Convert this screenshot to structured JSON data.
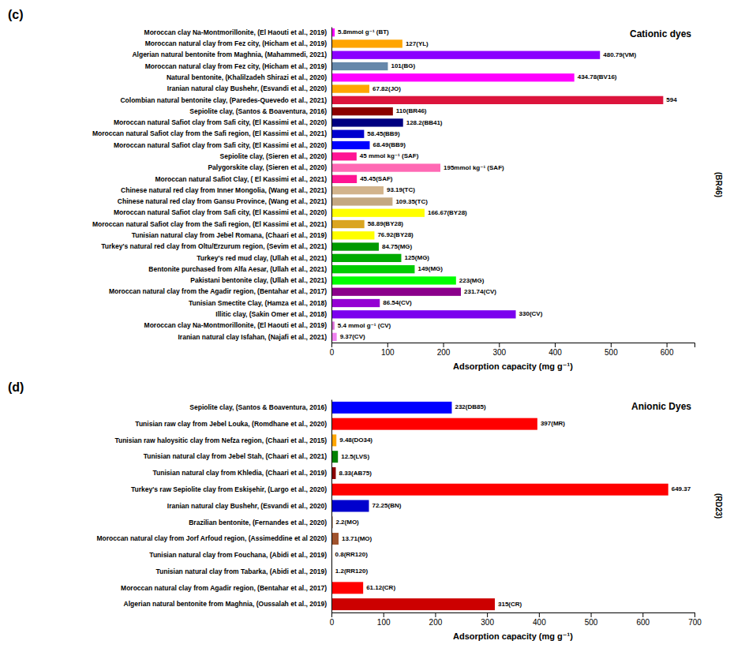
{
  "chart_data": [
    {
      "type": "bar",
      "orientation": "horizontal",
      "title": "(c)",
      "xlabel": "Adsorption capacity (mg g⁻¹)",
      "annotations": [
        "Cationic dyes",
        "(BR46)"
      ],
      "categories": [
        "Moroccan clay Na-Montmorillonite, (El Haouti et al., 2019)",
        "Moroccan natural clay from Fez city, (Hicham et al., 2019)",
        "Algerian natural bentonite from Maghnia, (Mahammedi, 2021)",
        "Moroccan natural clay from Fez city, (Hicham et al., 2019)",
        "Natural bentonite, (Khalilzadeh Shirazi et al., 2020)",
        "Iranian natural clay Bushehr, (Esvandi et al., 2020)",
        "Colombian natural bentonite clay, (Paredes-Quevedo et al., 2021)",
        "Sepiolite clay, (Santos & Boaventura, 2016)",
        "Moroccan natural Safiot clay from Safi city, (El Kassimi et al., 2020)",
        "Moroccan natural Safiot clay from the Safi region, (El Kassimi et al., 2021)",
        "Moroccan natural Safiot clay from Safi city, (El Kassimi et al., 2020)",
        "Sepiolite clay, (Sieren et al., 2020)",
        "Palygorskite clay, (Sieren et al., 2020)",
        "Moroccan natural Safiot Clay, ( El Kassimi et al., 2021)",
        "Chinese natural red clay from Inner Mongolia, (Wang et al., 2021)",
        "Chinese natural red clay from Gansu Province, (Wang et al., 2021)",
        "Moroccan natural Safiot clay from Safi city, (El Kassimi et al., 2020)",
        "Moroccan natural Safiot clay from the Safi region, (El Kassimi et al., 2021)",
        "Tunisian natural clay from Jebel Romana, (Chaari et al., 2019)",
        "Turkey's natural red clay from Oltu/Erzurum region, (Sevim et al., 2021)",
        "Turkey's red mud clay, (Ullah et al., 2021)",
        "Bentonite purchased from Alfa Aesar, (Ullah et al., 2021)",
        "Pakistani bentonite clay, (Ullah et al., 2021)",
        "Moroccan natural clay from the Agadir region, (Bentahar et al., 2017)",
        "Tunisian Smectite Clay, (Hamza et al., 2018)",
        "Illitic clay, (Sakin Omer et al., 2018)",
        "Moroccan clay Na-Montmorillonite, (El Haouti et al., 2019)",
        "Iranian natural clay Isfahan, (Najafi et al., 2021)"
      ],
      "values": [
        5.8,
        127,
        480.79,
        101,
        434.78,
        67.82,
        594,
        110,
        128.2,
        58.45,
        68.49,
        45,
        195,
        45.45,
        93.19,
        109.35,
        166.67,
        58.89,
        76.92,
        84.75,
        125,
        149,
        223,
        231.74,
        86.54,
        330,
        5.4,
        9.37
      ],
      "value_labels": [
        "5.8mmol g⁻¹ (BT)",
        "127(YL)",
        "480.79(VM)",
        "101(BG)",
        "434.78(BV16)",
        "67.82(JO)",
        "594",
        "110(BR46)",
        "128.2(BB41)",
        "58.45(BB9)",
        "68.49(BB9)",
        "45 mmol kg⁻¹ (SAF)",
        "195mmol kg⁻¹ (SAF)",
        "45.45(SAF)",
        "93.19(TC)",
        "109.35(TC)",
        "166.67(BY28)",
        "58.89(BY28)",
        "76.92(BY28)",
        "84.75(MG)",
        "125(MG)",
        "149(MG)",
        "223(MG)",
        "231.74(CV)",
        "86.54(CV)",
        "330(CV)",
        "5.4 mmol g⁻¹ (CV)",
        "9.37(CV)"
      ],
      "colors": [
        "#FF00FF",
        "#FFA500",
        "#8B00FF",
        "#6688AA",
        "#FF00FF",
        "#FFA500",
        "#DC143C",
        "#8B0000",
        "#000080",
        "#0000CD",
        "#0000FF",
        "#FF1493",
        "#FF69B4",
        "#FF1493",
        "#D2B48C",
        "#C4A882",
        "#FFFF00",
        "#DAA520",
        "#FFFF00",
        "#009900",
        "#00AA00",
        "#00CC00",
        "#00FF00",
        "#8B008B",
        "#9400D3",
        "#7B00EE",
        "#DA70D6",
        "#EE82EE"
      ],
      "xlim": [
        0,
        650
      ],
      "xticks": [
        0,
        100,
        200,
        300,
        400,
        500,
        600
      ],
      "data_labels": true
    },
    {
      "type": "bar",
      "orientation": "horizontal",
      "title": "(d)",
      "xlabel": "Adsorption capacity (mg g⁻¹)",
      "annotations": [
        "Anionic Dyes",
        "(RD23)"
      ],
      "categories": [
        "Sepiolite clay, (Santos & Boaventura, 2016)",
        "Tunisian raw clay from Jebel Louka, (Romdhane et al., 2020)",
        "Tunisian raw haloysitic clay from Nefza region, (Chaari et al., 2015)",
        "Tunisian natural clay from Jebel Stah, (Chaari et al., 2021)",
        "Tunisian natural clay from Khledia, (Chaari et al., 2019)",
        "Turkey's raw Sepiolite clay from Eskişehir, (Largo et al., 2020)",
        "Iranian natural clay Bushehr, (Esvandi et al., 2020)",
        "Brazilian bentonite, (Fernandes et al., 2020)",
        "Moroccan natural clay from Jorf Arfoud region, (Assimeddine et al 2020)",
        "Tunisian natural clay from Fouchana, (Abidi et al., 2019)",
        "Tunisian natural clay from Tabarka, (Abidi et al., 2019)",
        "Moroccan natural clay from Agadir region, (Bentahar et al., 2017)",
        "Algerian natural bentonite from Maghnia, (Oussalah et al., 2019)"
      ],
      "values": [
        232,
        397,
        9.48,
        12.5,
        8.33,
        649.37,
        72.25,
        2.2,
        13.71,
        0.8,
        1.2,
        61.12,
        315
      ],
      "value_labels": [
        "232(DB85)",
        "397(MR)",
        "9.48(DO34)",
        "12.5(LVS)",
        "8.33(AB75)",
        "649.37",
        "72.25(BN)",
        "2.2(MO)",
        "13.71(MO)",
        "0.8(RR120)",
        "1.2(RR120)",
        "61.12(CR)",
        "315(CR)"
      ],
      "colors": [
        "#0000FF",
        "#FF0000",
        "#FFA500",
        "#008000",
        "#8B0000",
        "#FF0000",
        "#0000CD",
        "#8B4513",
        "#A0522D",
        "#FF0000",
        "#CC0000",
        "#FF0000",
        "#CC0000"
      ],
      "xlim": [
        0,
        700
      ],
      "xticks": [
        0,
        100,
        200,
        300,
        400,
        500,
        600,
        700
      ],
      "data_labels": true
    }
  ]
}
